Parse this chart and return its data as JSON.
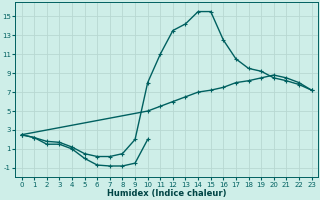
{
  "bg_color": "#ceeee8",
  "grid_color": "#b8d8d2",
  "line_color": "#006060",
  "line_width": 1.0,
  "marker": "+",
  "marker_size": 3,
  "marker_lw": 0.8,
  "xlabel": "Humidex (Indice chaleur)",
  "xlabel_fontsize": 6.0,
  "xlabel_color": "#004444",
  "xlim": [
    -0.5,
    23.5
  ],
  "ylim": [
    -2.0,
    16.5
  ],
  "yticks": [
    -1,
    1,
    3,
    5,
    7,
    9,
    11,
    13,
    15
  ],
  "xticks": [
    0,
    1,
    2,
    3,
    4,
    5,
    6,
    7,
    8,
    9,
    10,
    11,
    12,
    13,
    14,
    15,
    16,
    17,
    18,
    19,
    20,
    21,
    22,
    23
  ],
  "tick_fontsize": 5.0,
  "line1_x": [
    0,
    1,
    2,
    3,
    4,
    5,
    6,
    7,
    8,
    9,
    10,
    11,
    12,
    13,
    14,
    15,
    16,
    17,
    18,
    19,
    20,
    21,
    22,
    23
  ],
  "line1_y": [
    2.5,
    2.2,
    1.8,
    1.7,
    1.2,
    0.5,
    0.2,
    0.2,
    0.5,
    2.0,
    8.0,
    11.0,
    13.5,
    14.2,
    15.5,
    15.5,
    12.5,
    10.5,
    9.5,
    9.2,
    8.5,
    8.2,
    7.8,
    7.2
  ],
  "line2_x": [
    0,
    10,
    11,
    12,
    13,
    14,
    15,
    16,
    17,
    18,
    19,
    20,
    21,
    22,
    23
  ],
  "line2_y": [
    2.5,
    5.0,
    5.5,
    6.0,
    6.5,
    7.0,
    7.2,
    7.5,
    8.0,
    8.2,
    8.5,
    8.8,
    8.5,
    8.0,
    7.2
  ],
  "line3_x": [
    0,
    1,
    2,
    3,
    4,
    5,
    6,
    7,
    8,
    9,
    10
  ],
  "line3_y": [
    2.5,
    2.2,
    1.5,
    1.5,
    1.0,
    0.0,
    -0.7,
    -0.8,
    -0.8,
    -0.5,
    2.0
  ]
}
